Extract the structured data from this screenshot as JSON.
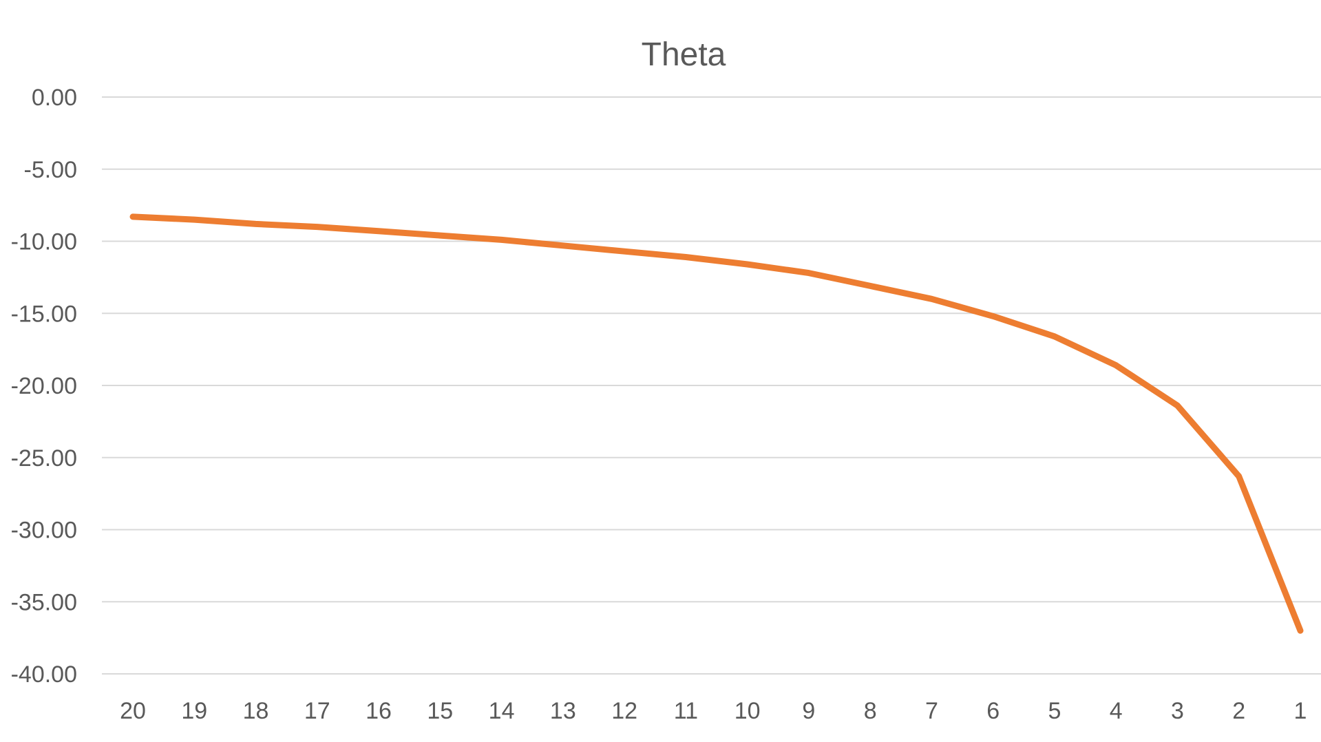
{
  "chart_data": {
    "type": "line",
    "title": "Theta",
    "xlabel": "",
    "ylabel": "",
    "categories": [
      "20",
      "19",
      "18",
      "17",
      "16",
      "15",
      "14",
      "13",
      "12",
      "11",
      "10",
      "9",
      "8",
      "7",
      "6",
      "5",
      "4",
      "3",
      "2",
      "1"
    ],
    "y_tick_labels": [
      "0.00",
      "-5.00",
      "-10.00",
      "-15.00",
      "-20.00",
      "-25.00",
      "-30.00",
      "-35.00",
      "-40.00"
    ],
    "y_tick_values": [
      0,
      -5,
      -10,
      -15,
      -20,
      -25,
      -30,
      -35,
      -40
    ],
    "ylim": [
      -40,
      0
    ],
    "grid": true,
    "legend": "none",
    "series": [
      {
        "color": "#ed7d31",
        "values": [
          -8.3,
          -8.5,
          -8.8,
          -9.0,
          -9.3,
          -9.6,
          -9.9,
          -10.3,
          -10.7,
          -11.1,
          -11.6,
          -12.2,
          -13.1,
          -14.0,
          -15.2,
          -16.6,
          -18.6,
          -21.4,
          -26.3,
          -37.0
        ]
      }
    ]
  }
}
